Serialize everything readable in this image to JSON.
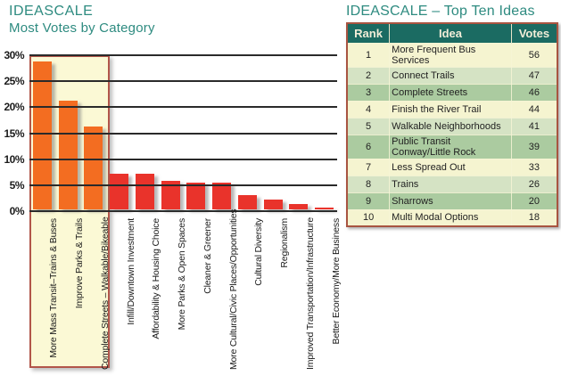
{
  "chart": {
    "title_line1": "IDEASCALE",
    "title_line2": "Most Votes by Category",
    "title_color": "#2e8b80"
  },
  "chart_data": {
    "type": "bar",
    "title": "IDEASCALE - Most Votes by Category",
    "categories": [
      "More Mass Transit–Trains & Buses",
      "Improve Parks & Trails",
      "Complete Streets – Walkable/Bikeable",
      "Infill/Downtown Investment",
      "Affordability & Housing Choice",
      "More Parks & Open Spaces",
      "Cleaner & Greener",
      "More Cultural/Civic Places/Opportunities",
      "Cultural Diversity",
      "Regionalism",
      "Improved Transportation/Infrastructure",
      "Better Economy/More Business"
    ],
    "values": [
      28.5,
      21,
      16,
      6.8,
      6.9,
      5.5,
      5.1,
      5.1,
      2.7,
      1.9,
      1.0,
      0.3
    ],
    "value_unit": "%",
    "ylim": [
      0,
      30
    ],
    "y_ticks": [
      "30%",
      "25%",
      "20%",
      "15%",
      "10%",
      "5%",
      "0%"
    ],
    "grid": "horizontal",
    "highlight_first_n": 3,
    "bar_color_highlighted": "#f36d21",
    "bar_color_normal": "#e9332b",
    "highlight_box_bg": "#fbf9d5",
    "highlight_box_border": "#b2564a"
  },
  "table": {
    "title": "IDEASCALE – Top Ten Ideas",
    "columns": [
      "Rank",
      "Idea",
      "Votes"
    ],
    "header_bg": "#1b6b62",
    "header_text_color": "#f2edd8",
    "outer_border_color": "#a85441",
    "row_bg_cycle": [
      "#f5f4d0",
      "#d5e3c4",
      "#abcba0"
    ],
    "rows": [
      {
        "rank": "1",
        "idea": "More Frequent Bus Services",
        "votes": "56"
      },
      {
        "rank": "2",
        "idea": "Connect Trails",
        "votes": "47"
      },
      {
        "rank": "3",
        "idea": "Complete Streets",
        "votes": "46"
      },
      {
        "rank": "4",
        "idea": "Finish the River Trail",
        "votes": "44"
      },
      {
        "rank": "5",
        "idea": "Walkable Neighborhoods",
        "votes": "41"
      },
      {
        "rank": "6",
        "idea": "Public Transit Conway/Little Rock",
        "votes": "39"
      },
      {
        "rank": "7",
        "idea": "Less Spread Out",
        "votes": "33"
      },
      {
        "rank": "8",
        "idea": "Trains",
        "votes": "26"
      },
      {
        "rank": "9",
        "idea": "Sharrows",
        "votes": "20"
      },
      {
        "rank": "10",
        "idea": "Multi Modal Options",
        "votes": "18"
      }
    ]
  }
}
